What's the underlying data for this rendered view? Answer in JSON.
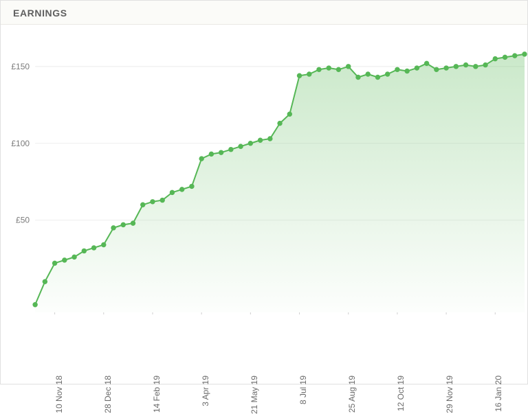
{
  "title": "EARNINGS",
  "chart": {
    "type": "area-line",
    "background_color": "#ffffff",
    "line_color": "#56b756",
    "line_width": 2,
    "marker": {
      "shape": "circle",
      "radius": 3.2,
      "fill": "#56b756",
      "stroke": "#56b756"
    },
    "area_fill_top": "rgba(124,199,122,0.40)",
    "area_fill_bottom": "rgba(124,199,122,0.02)",
    "grid_color": "#eeeeee",
    "yaxis": {
      "min": -10,
      "max": 170,
      "ticks": [
        50,
        100,
        150
      ],
      "tick_labels": [
        "£50",
        "£100",
        "£150"
      ],
      "label_fontsize": 12,
      "label_color": "#7a7a7a"
    },
    "xaxis": {
      "label_fontsize": 12,
      "label_color": "#6a6a6a",
      "rotation_deg": -90,
      "tick_indices": [
        2,
        7,
        12,
        17,
        22,
        27,
        32,
        37,
        42,
        47
      ],
      "tick_labels": [
        "10 Nov 18",
        "28 Dec 18",
        "14 Feb 19",
        "3 Apr 19",
        "21 May 19",
        "8 Jul 19",
        "25 Aug 19",
        "12 Oct 19",
        "29 Nov 19",
        "16 Jan 20"
      ]
    },
    "values": [
      -5,
      10,
      22,
      24,
      26,
      30,
      32,
      34,
      45,
      47,
      48,
      60,
      62,
      63,
      68,
      70,
      72,
      90,
      93,
      94,
      96,
      98,
      100,
      102,
      103,
      113,
      119,
      144,
      145,
      148,
      149,
      148,
      150,
      143,
      145,
      143,
      145,
      148,
      147,
      149,
      152,
      148,
      149,
      150,
      151,
      150,
      151,
      155,
      156,
      157,
      158
    ]
  }
}
